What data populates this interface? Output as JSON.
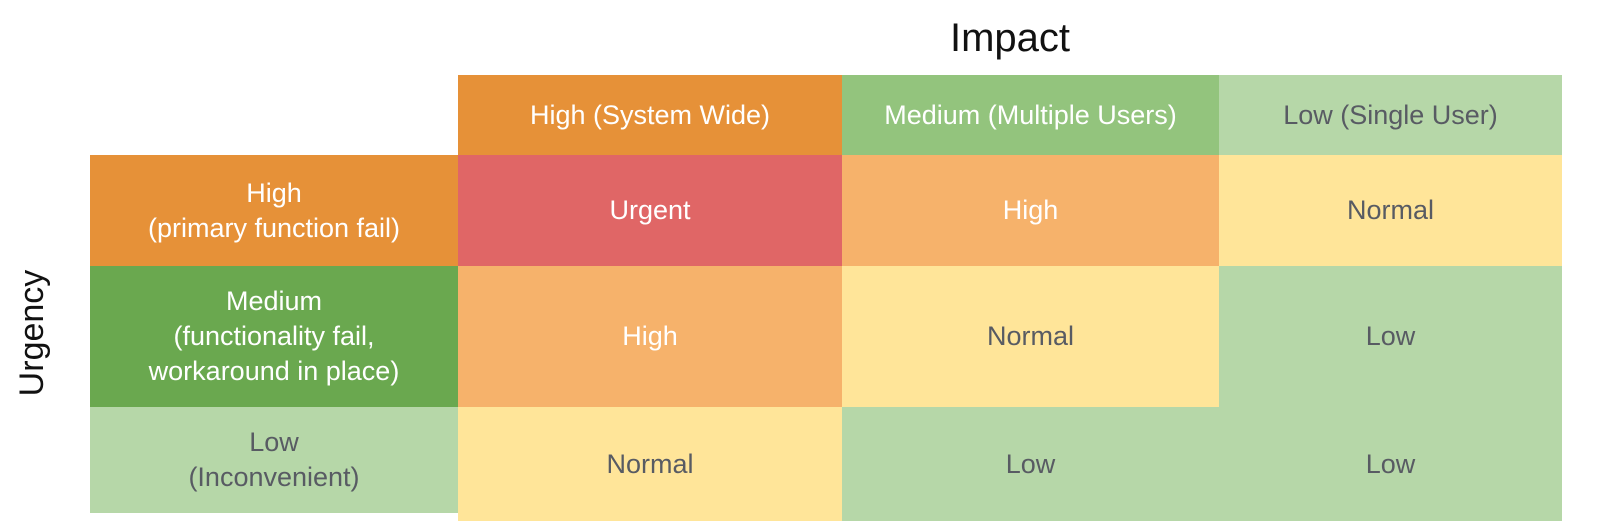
{
  "matrix": {
    "x_axis_title": "Impact",
    "y_axis_title": "Urgency",
    "colors": {
      "dark_orange": "#e69138",
      "light_orange": "#f6b26b",
      "red": "#e06666",
      "yellow": "#ffe599",
      "green": "#6aa84f",
      "medium_green": "#93c47d",
      "light_green": "#b6d7a8",
      "white_text": "#ffffff",
      "gray_text": "#585b63",
      "title_text": "#111111"
    },
    "column_headers": [
      {
        "label": "High (System Wide)",
        "bg": "#e69138",
        "text_color": "#ffffff"
      },
      {
        "label": "Medium (Multiple Users)",
        "bg": "#93c47d",
        "text_color": "#ffffff"
      },
      {
        "label": "Low (Single User)",
        "bg": "#b6d7a8",
        "text_color": "#585b63"
      }
    ],
    "row_headers": [
      {
        "lines": [
          "High",
          "(primary function fail)"
        ],
        "bg": "#e69138",
        "text_color": "#ffffff"
      },
      {
        "lines": [
          "Medium",
          "(functionality fail,",
          "workaround in place)"
        ],
        "bg": "#6aa84f",
        "text_color": "#ffffff"
      },
      {
        "lines": [
          "Low",
          "(Inconvenient)"
        ],
        "bg": "#b6d7a8",
        "text_color": "#585b63"
      }
    ],
    "cells": [
      [
        {
          "label": "Urgent",
          "bg": "#e06666",
          "text_color": "#ffffff"
        },
        {
          "label": "High",
          "bg": "#f6b26b",
          "text_color": "#ffffff"
        },
        {
          "label": "Normal",
          "bg": "#ffe599",
          "text_color": "#585b63"
        }
      ],
      [
        {
          "label": "High",
          "bg": "#f6b26b",
          "text_color": "#ffffff"
        },
        {
          "label": "Normal",
          "bg": "#ffe599",
          "text_color": "#585b63"
        },
        {
          "label": "Low",
          "bg": "#b6d7a8",
          "text_color": "#585b63"
        }
      ],
      [
        {
          "label": "Normal",
          "bg": "#ffe599",
          "text_color": "#585b63"
        },
        {
          "label": "Low",
          "bg": "#b6d7a8",
          "text_color": "#585b63"
        },
        {
          "label": "Low",
          "bg": "#b6d7a8",
          "text_color": "#585b63"
        }
      ]
    ]
  }
}
